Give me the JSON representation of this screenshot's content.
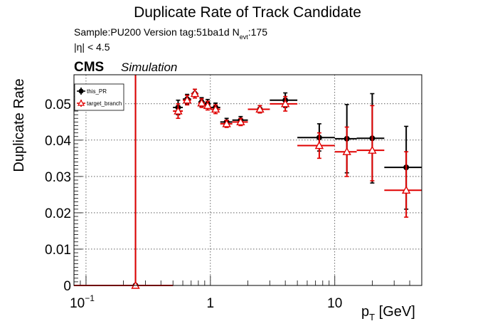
{
  "chart_data": {
    "type": "scatter",
    "title": "Duplicate Rate of Track Candidate",
    "info_line1_prefix": "Sample:PU200   Version tag:51ba1d  N",
    "info_line1_sub": "evt",
    "info_line1_suffix": ":175",
    "info_line2": "|η| < 4.5",
    "cms_label": "CMS",
    "sim_label": "Simulation",
    "ylabel": "Duplicate Rate",
    "xlabel_main": "p",
    "xlabel_sub": "T",
    "xlabel_unit": " [GeV]",
    "x_scale": "log",
    "xlim": [
      0.08,
      50
    ],
    "ylim": [
      0,
      0.058
    ],
    "grid": true,
    "legend_position": "top-left",
    "y_ticks": [
      {
        "value": 0,
        "label": "0"
      },
      {
        "value": 0.01,
        "label": "0.01"
      },
      {
        "value": 0.02,
        "label": "0.02"
      },
      {
        "value": 0.03,
        "label": "0.03"
      },
      {
        "value": 0.04,
        "label": "0.04"
      },
      {
        "value": 0.05,
        "label": "0.05"
      }
    ],
    "x_ticks": [
      {
        "value": 0.1,
        "base": "10",
        "exp": "−1"
      },
      {
        "value": 1,
        "base": "1",
        "exp": ""
      },
      {
        "value": 10,
        "base": "10",
        "exp": ""
      }
    ],
    "series": [
      {
        "name": "this_PR",
        "color": "#000000",
        "marker": "circle",
        "points": [
          {
            "x": 0.25,
            "xlo": 0.0,
            "xhi": 0.5,
            "y": 0.0,
            "ylo": 0.0,
            "yhi": 0.059
          },
          {
            "x": 0.55,
            "xlo": 0.5,
            "xhi": 0.6,
            "y": 0.049,
            "ylo": 0.047,
            "yhi": 0.051
          },
          {
            "x": 0.65,
            "xlo": 0.6,
            "xhi": 0.7,
            "y": 0.0513,
            "ylo": 0.05,
            "yhi": 0.0526
          },
          {
            "x": 0.75,
            "xlo": 0.7,
            "xhi": 0.8,
            "y": 0.0528,
            "ylo": 0.0516,
            "yhi": 0.054
          },
          {
            "x": 0.85,
            "xlo": 0.8,
            "xhi": 0.9,
            "y": 0.0505,
            "ylo": 0.0493,
            "yhi": 0.0517
          },
          {
            "x": 0.95,
            "xlo": 0.9,
            "xhi": 1.0,
            "y": 0.05,
            "ylo": 0.0488,
            "yhi": 0.0512
          },
          {
            "x": 1.1,
            "xlo": 1.0,
            "xhi": 1.2,
            "y": 0.049,
            "ylo": 0.0478,
            "yhi": 0.0502
          },
          {
            "x": 1.35,
            "xlo": 1.2,
            "xhi": 1.5,
            "y": 0.045,
            "ylo": 0.044,
            "yhi": 0.046
          },
          {
            "x": 1.75,
            "xlo": 1.5,
            "xhi": 2.0,
            "y": 0.0455,
            "ylo": 0.0445,
            "yhi": 0.0465
          },
          {
            "x": 2.5,
            "xlo": 2.0,
            "xhi": 3.0,
            "y": 0.0485,
            "ylo": 0.0475,
            "yhi": 0.0495
          },
          {
            "x": 4.0,
            "xlo": 3.0,
            "xhi": 5.0,
            "y": 0.051,
            "ylo": 0.049,
            "yhi": 0.053
          },
          {
            "x": 7.5,
            "xlo": 5.0,
            "xhi": 10.0,
            "y": 0.0407,
            "ylo": 0.037,
            "yhi": 0.0445
          },
          {
            "x": 12.5,
            "xlo": 10.0,
            "xhi": 15.0,
            "y": 0.0404,
            "ylo": 0.031,
            "yhi": 0.0498
          },
          {
            "x": 20.0,
            "xlo": 15.0,
            "xhi": 25.0,
            "y": 0.0405,
            "ylo": 0.0282,
            "yhi": 0.0528
          },
          {
            "x": 37.5,
            "xlo": 25.0,
            "xhi": 50.0,
            "y": 0.0325,
            "ylo": 0.021,
            "yhi": 0.0438
          }
        ]
      },
      {
        "name": "target_branch",
        "color": "#e00000",
        "marker": "triangle-open",
        "points": [
          {
            "x": 0.25,
            "xlo": 0.0,
            "xhi": 0.5,
            "y": 0.0,
            "ylo": 0.0,
            "yhi": 0.059
          },
          {
            "x": 0.55,
            "xlo": 0.5,
            "xhi": 0.6,
            "y": 0.048,
            "ylo": 0.046,
            "yhi": 0.05
          },
          {
            "x": 0.65,
            "xlo": 0.6,
            "xhi": 0.7,
            "y": 0.051,
            "ylo": 0.0497,
            "yhi": 0.0523
          },
          {
            "x": 0.75,
            "xlo": 0.7,
            "xhi": 0.8,
            "y": 0.0528,
            "ylo": 0.0516,
            "yhi": 0.054
          },
          {
            "x": 0.85,
            "xlo": 0.8,
            "xhi": 0.9,
            "y": 0.0502,
            "ylo": 0.049,
            "yhi": 0.0514
          },
          {
            "x": 0.95,
            "xlo": 0.9,
            "xhi": 1.0,
            "y": 0.0495,
            "ylo": 0.0483,
            "yhi": 0.0507
          },
          {
            "x": 1.1,
            "xlo": 1.0,
            "xhi": 1.2,
            "y": 0.0485,
            "ylo": 0.0473,
            "yhi": 0.0497
          },
          {
            "x": 1.35,
            "xlo": 1.2,
            "xhi": 1.5,
            "y": 0.0445,
            "ylo": 0.0435,
            "yhi": 0.0455
          },
          {
            "x": 1.75,
            "xlo": 1.5,
            "xhi": 2.0,
            "y": 0.045,
            "ylo": 0.044,
            "yhi": 0.046
          },
          {
            "x": 2.5,
            "xlo": 2.0,
            "xhi": 3.0,
            "y": 0.0485,
            "ylo": 0.0475,
            "yhi": 0.0495
          },
          {
            "x": 4.0,
            "xlo": 3.0,
            "xhi": 5.0,
            "y": 0.05,
            "ylo": 0.048,
            "yhi": 0.052
          },
          {
            "x": 7.5,
            "xlo": 5.0,
            "xhi": 10.0,
            "y": 0.0385,
            "ylo": 0.035,
            "yhi": 0.042
          },
          {
            "x": 12.5,
            "xlo": 10.0,
            "xhi": 15.0,
            "y": 0.0368,
            "ylo": 0.03,
            "yhi": 0.0436
          },
          {
            "x": 20.0,
            "xlo": 15.0,
            "xhi": 25.0,
            "y": 0.0372,
            "ylo": 0.0288,
            "yhi": 0.0495
          },
          {
            "x": 37.5,
            "xlo": 25.0,
            "xhi": 50.0,
            "y": 0.0262,
            "ylo": 0.0188,
            "yhi": 0.0368
          }
        ]
      }
    ]
  }
}
